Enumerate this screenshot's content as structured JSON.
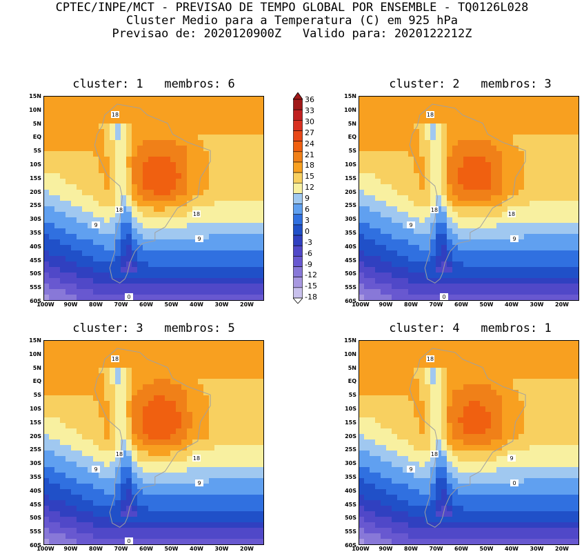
{
  "header": {
    "line1": "CPTEC/INPE/MCT - PREVISAO DE TEMPO GLOBAL POR ENSEMBLE - TQ0126L028",
    "line2": "Cluster Medio para a Temperatura (C) em 925 hPa",
    "line3": "Previsao de: 2020120900Z   Valido para: 2020122212Z"
  },
  "lat_labels": [
    "15N",
    "10N",
    "5N",
    "EQ",
    "5S",
    "10S",
    "15S",
    "20S",
    "25S",
    "30S",
    "35S",
    "40S",
    "45S",
    "50S",
    "55S",
    "60S"
  ],
  "lon_labels": [
    "100W",
    "90W",
    "80W",
    "70W",
    "60W",
    "50W",
    "40W",
    "30W",
    "20W"
  ],
  "panels": [
    {
      "title": "cluster: 1   membros: 6",
      "contour_labels": [
        "18",
        "18",
        "18",
        "9",
        "9",
        "0"
      ],
      "peak_scale": 1.0
    },
    {
      "title": "cluster: 2   membros: 3",
      "contour_labels": [
        "18",
        "18",
        "18",
        "9",
        "9",
        "0"
      ],
      "peak_scale": 0.95
    },
    {
      "title": "cluster: 3   membros: 5",
      "contour_labels": [
        "18",
        "18",
        "18",
        "9",
        "9",
        "0"
      ],
      "peak_scale": 1.05
    },
    {
      "title": "cluster: 4   membros: 1",
      "contour_labels": [
        "18",
        "18",
        "9",
        "9",
        "0"
      ],
      "peak_scale": 0.9
    }
  ],
  "colorbar": {
    "labels": [
      "36",
      "33",
      "30",
      "27",
      "24",
      "21",
      "18",
      "15",
      "12",
      "9",
      "6",
      "3",
      "0",
      "-3",
      "-6",
      "-9",
      "-12",
      "-15",
      "-18"
    ],
    "colors": [
      "#a01818",
      "#c02020",
      "#d83020",
      "#e84818",
      "#f06010",
      "#f08018",
      "#f8a020",
      "#f8d060",
      "#f8f0a0",
      "#a0c8f0",
      "#60a0f0",
      "#3070e0",
      "#2050c8",
      "#3040c0",
      "#5048c8",
      "#6858d0",
      "#8878d8",
      "#a898e0",
      "#c8c0ec"
    ]
  }
}
